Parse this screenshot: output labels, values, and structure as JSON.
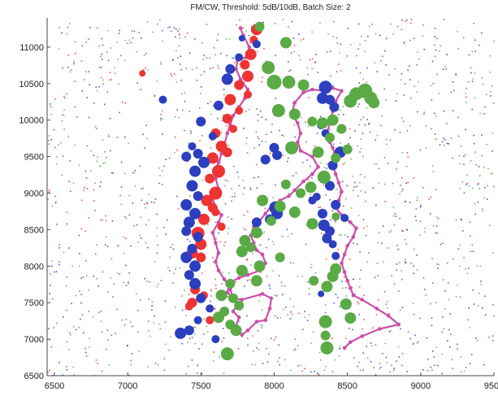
{
  "chart_data": {
    "type": "scatter",
    "title": "FM/CW,  Threshold: 5dB/10dB,  Batch Size: 2",
    "xlabel": "",
    "ylabel": "",
    "xlim": [
      6450,
      9500
    ],
    "ylim": [
      6500,
      11400
    ],
    "xticks": [
      6500,
      7000,
      7500,
      8000,
      8500,
      9000,
      9500
    ],
    "yticks": [
      6500,
      7000,
      7500,
      8000,
      8500,
      9000,
      9500,
      10000,
      10500,
      11000
    ],
    "grid": false,
    "colors": {
      "red": "#ee3333",
      "blue": "#2b3fbf",
      "green": "#5aaa46",
      "track": "#cc4ea8"
    },
    "series": [
      {
        "color": "red",
        "kind": "detections",
        "points": [
          [
            7880,
            11240,
            7
          ],
          [
            7860,
            11100,
            5
          ],
          [
            7840,
            10900,
            7
          ],
          [
            7800,
            10760,
            6
          ],
          [
            7820,
            10600,
            7
          ],
          [
            7760,
            10480,
            6
          ],
          [
            7820,
            10350,
            5
          ],
          [
            7700,
            10280,
            7
          ],
          [
            7760,
            10130,
            5
          ],
          [
            7680,
            10020,
            6
          ],
          [
            7720,
            9880,
            5
          ],
          [
            7600,
            9820,
            6
          ],
          [
            7640,
            9640,
            7
          ],
          [
            7680,
            9560,
            6
          ],
          [
            7580,
            9480,
            7
          ],
          [
            7620,
            9300,
            8
          ],
          [
            7560,
            9200,
            6
          ],
          [
            7600,
            9000,
            8
          ],
          [
            7540,
            8900,
            7
          ],
          [
            7580,
            8800,
            6
          ],
          [
            7520,
            8640,
            7
          ],
          [
            7480,
            8450,
            8
          ],
          [
            7500,
            8300,
            7
          ],
          [
            7440,
            8180,
            7
          ],
          [
            7500,
            8120,
            6
          ],
          [
            7460,
            7680,
            6
          ],
          [
            7520,
            7600,
            5
          ],
          [
            7440,
            7500,
            6
          ],
          [
            7420,
            7450,
            5
          ],
          [
            7560,
            7260,
            5
          ],
          [
            7100,
            10640,
            4
          ],
          [
            7600,
            8740,
            5
          ],
          [
            7640,
            8540,
            5
          ]
        ]
      },
      {
        "color": "blue",
        "kind": "detections",
        "points": [
          [
            7780,
            11120,
            4
          ],
          [
            7880,
            11040,
            5
          ],
          [
            7760,
            10860,
            5
          ],
          [
            7700,
            10700,
            6
          ],
          [
            7680,
            10560,
            7
          ],
          [
            7240,
            10280,
            5
          ],
          [
            7620,
            10200,
            6
          ],
          [
            7500,
            9980,
            6
          ],
          [
            7580,
            9780,
            5
          ],
          [
            7440,
            9640,
            5
          ],
          [
            7480,
            9540,
            6
          ],
          [
            7400,
            9500,
            6
          ],
          [
            7520,
            9420,
            7
          ],
          [
            7460,
            9300,
            7
          ],
          [
            7440,
            9100,
            7
          ],
          [
            7480,
            8960,
            6
          ],
          [
            7400,
            8840,
            7
          ],
          [
            7460,
            8720,
            7
          ],
          [
            7420,
            8600,
            7
          ],
          [
            7400,
            8480,
            6
          ],
          [
            7480,
            8400,
            6
          ],
          [
            7440,
            8240,
            6
          ],
          [
            7400,
            8120,
            7
          ],
          [
            7460,
            8000,
            7
          ],
          [
            7420,
            7880,
            6
          ],
          [
            7460,
            7760,
            7
          ],
          [
            7500,
            7560,
            6
          ],
          [
            7560,
            7420,
            5
          ],
          [
            7480,
            7260,
            5
          ],
          [
            7420,
            7120,
            6
          ],
          [
            7360,
            7080,
            7
          ],
          [
            7600,
            7000,
            5
          ],
          [
            8000,
            9620,
            6
          ],
          [
            8020,
            9520,
            6
          ],
          [
            7940,
            9460,
            6
          ],
          [
            8010,
            8800,
            8
          ],
          [
            8020,
            8720,
            7
          ],
          [
            7970,
            8640,
            6
          ],
          [
            7880,
            8600,
            6
          ],
          [
            8350,
            10450,
            8
          ],
          [
            8330,
            10300,
            7
          ],
          [
            8380,
            10280,
            6
          ],
          [
            8410,
            10180,
            6
          ],
          [
            8320,
            9930,
            5
          ],
          [
            8350,
            9820,
            5
          ],
          [
            8450,
            9560,
            7
          ],
          [
            8400,
            9380,
            6
          ],
          [
            8380,
            9100,
            6
          ],
          [
            8290,
            8950,
            5
          ],
          [
            8260,
            8900,
            5
          ],
          [
            8330,
            8720,
            6
          ],
          [
            8340,
            8560,
            7
          ],
          [
            8380,
            8480,
            6
          ],
          [
            8360,
            8380,
            6
          ],
          [
            8400,
            8300,
            5
          ],
          [
            8420,
            8140,
            5
          ],
          [
            8320,
            7620,
            4
          ],
          [
            8480,
            8660,
            5
          ],
          [
            8420,
            8840,
            6
          ]
        ]
      },
      {
        "color": "green",
        "kind": "detections",
        "points": [
          [
            7900,
            11280,
            6
          ],
          [
            8080,
            11060,
            7
          ],
          [
            7960,
            10720,
            8
          ],
          [
            8000,
            10520,
            9
          ],
          [
            8100,
            10520,
            8
          ],
          [
            8200,
            10480,
            7
          ],
          [
            8030,
            10130,
            8
          ],
          [
            8140,
            10080,
            7
          ],
          [
            8260,
            9980,
            6
          ],
          [
            8330,
            9960,
            7
          ],
          [
            8400,
            10000,
            7
          ],
          [
            8460,
            9880,
            6
          ],
          [
            8380,
            9760,
            6
          ],
          [
            8520,
            10260,
            8
          ],
          [
            8560,
            10360,
            8
          ],
          [
            8620,
            10400,
            9
          ],
          [
            8660,
            10300,
            8
          ],
          [
            8680,
            10240,
            7
          ],
          [
            8120,
            9620,
            8
          ],
          [
            8300,
            9560,
            7
          ],
          [
            8420,
            9480,
            6
          ],
          [
            8340,
            9220,
            8
          ],
          [
            8250,
            9080,
            7
          ],
          [
            8180,
            9000,
            6
          ],
          [
            8080,
            9120,
            6
          ],
          [
            7920,
            8900,
            7
          ],
          [
            8040,
            8820,
            7
          ],
          [
            8140,
            8740,
            7
          ],
          [
            8260,
            8580,
            7
          ],
          [
            7980,
            8620,
            6
          ],
          [
            7880,
            8460,
            7
          ],
          [
            7800,
            8350,
            7
          ],
          [
            7840,
            8260,
            6
          ],
          [
            7780,
            8200,
            7
          ],
          [
            8040,
            8120,
            6
          ],
          [
            7900,
            8000,
            7
          ],
          [
            7780,
            7940,
            7
          ],
          [
            7880,
            7800,
            7
          ],
          [
            7700,
            7760,
            6
          ],
          [
            7640,
            7600,
            7
          ],
          [
            7720,
            7560,
            6
          ],
          [
            7760,
            7460,
            6
          ],
          [
            7660,
            7380,
            6
          ],
          [
            7620,
            7300,
            7
          ],
          [
            7700,
            7200,
            6
          ],
          [
            7740,
            7120,
            7
          ],
          [
            7680,
            6800,
            8
          ],
          [
            8350,
            7240,
            8
          ],
          [
            8350,
            7050,
            6
          ],
          [
            8360,
            6880,
            8
          ],
          [
            8400,
            7860,
            7
          ],
          [
            8420,
            7960,
            7
          ],
          [
            8360,
            7720,
            7
          ],
          [
            8490,
            7480,
            7
          ],
          [
            8520,
            7290,
            7
          ],
          [
            8270,
            7800,
            6
          ],
          [
            8420,
            8680,
            5
          ],
          [
            8500,
            9600,
            6
          ]
        ]
      }
    ],
    "track": [
      [
        7770,
        11260
      ],
      [
        7790,
        11160
      ],
      [
        7830,
        11000
      ],
      [
        7810,
        10860
      ],
      [
        7750,
        10820
      ],
      [
        7740,
        10700
      ],
      [
        7770,
        10560
      ],
      [
        7820,
        10420
      ],
      [
        7800,
        10300
      ],
      [
        7760,
        10180
      ],
      [
        7720,
        10060
      ],
      [
        7700,
        9940
      ],
      [
        7680,
        9820
      ],
      [
        7660,
        9660
      ],
      [
        7640,
        9540
      ],
      [
        7620,
        9420
      ],
      [
        7600,
        9320
      ],
      [
        7600,
        9200
      ],
      [
        7620,
        9060
      ],
      [
        7580,
        8920
      ],
      [
        7600,
        8800
      ],
      [
        7640,
        8700
      ],
      [
        7620,
        8600
      ],
      [
        7580,
        8460
      ],
      [
        7600,
        8320
      ],
      [
        7620,
        8180
      ],
      [
        7600,
        8060
      ],
      [
        7620,
        7940
      ],
      [
        7660,
        7820
      ],
      [
        7700,
        7680
      ],
      [
        7720,
        7560
      ],
      [
        7750,
        7480
      ],
      [
        7720,
        7380
      ],
      [
        7760,
        7300
      ],
      [
        7740,
        7180
      ],
      [
        7780,
        7060
      ],
      [
        7820,
        7120
      ],
      [
        7880,
        7240
      ],
      [
        7940,
        7260
      ],
      [
        7970,
        7420
      ],
      [
        7980,
        7560
      ],
      [
        7920,
        7620
      ],
      [
        7780,
        7540
      ],
      [
        7720,
        7560
      ],
      [
        7680,
        7640
      ],
      [
        7700,
        7780
      ],
      [
        7760,
        7840
      ],
      [
        7820,
        7880
      ],
      [
        7900,
        7940
      ],
      [
        7940,
        8040
      ],
      [
        7920,
        8160
      ],
      [
        7880,
        8220
      ],
      [
        7860,
        8320
      ],
      [
        7840,
        8420
      ],
      [
        7860,
        8540
      ],
      [
        7900,
        8620
      ],
      [
        7940,
        8720
      ],
      [
        7980,
        8820
      ],
      [
        8040,
        8900
      ],
      [
        8100,
        8960
      ],
      [
        8140,
        9040
      ],
      [
        8200,
        9160
      ],
      [
        8260,
        9260
      ],
      [
        8300,
        9360
      ],
      [
        8260,
        9500
      ],
      [
        8180,
        9580
      ],
      [
        8160,
        9700
      ],
      [
        8180,
        9820
      ],
      [
        8160,
        9960
      ],
      [
        8120,
        10080
      ],
      [
        8140,
        10240
      ],
      [
        8200,
        10380
      ],
      [
        8260,
        10420
      ],
      [
        8340,
        10400
      ],
      [
        8400,
        10440
      ],
      [
        8460,
        10400
      ],
      [
        8420,
        10260
      ],
      [
        8400,
        10120
      ],
      [
        8380,
        9960
      ],
      [
        8360,
        9820
      ],
      [
        8380,
        9700
      ],
      [
        8400,
        9620
      ],
      [
        8420,
        9500
      ],
      [
        8400,
        9380
      ],
      [
        8420,
        9260
      ],
      [
        8440,
        9140
      ],
      [
        8460,
        9020
      ],
      [
        8440,
        8900
      ],
      [
        8420,
        8800
      ],
      [
        8460,
        8700
      ],
      [
        8520,
        8600
      ],
      [
        8560,
        8520
      ],
      [
        8540,
        8400
      ],
      [
        8500,
        8280
      ],
      [
        8480,
        8160
      ],
      [
        8460,
        8040
      ],
      [
        8480,
        7920
      ],
      [
        8500,
        7800
      ],
      [
        8520,
        7700
      ],
      [
        8540,
        7600
      ],
      [
        8600,
        7540
      ],
      [
        8700,
        7420
      ],
      [
        8780,
        7320
      ],
      [
        8850,
        7200
      ],
      [
        8720,
        7140
      ],
      [
        8600,
        7040
      ],
      [
        8520,
        6960
      ],
      [
        8480,
        6880
      ]
    ],
    "scatter_noise": {
      "count": 1500,
      "colors": [
        "red",
        "blue",
        "green"
      ]
    }
  }
}
